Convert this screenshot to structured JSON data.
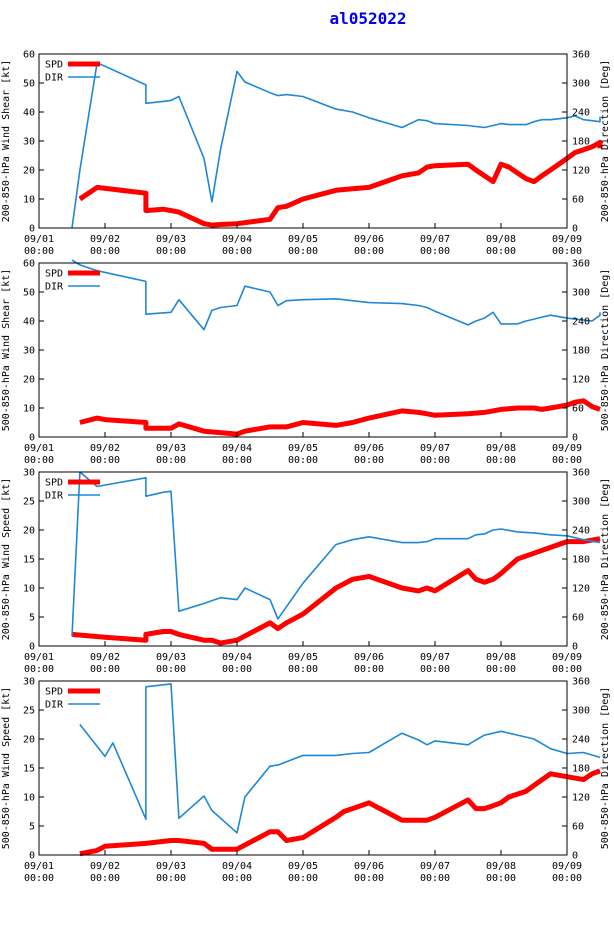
{
  "title": "al052022",
  "colors": {
    "spd": "#ff0000",
    "dir": "#1e88d6",
    "axis": "#000000",
    "title": "#0000ee"
  },
  "chart_data": [
    {
      "type": "line",
      "ylabel_left": "200-850-hPa Wind Shear [kt]",
      "ylabel_right": "200-850-hPa Direction [Deg]",
      "ylim_left": [
        0,
        60
      ],
      "yticks_left": [
        "0",
        "10",
        "20",
        "30",
        "40",
        "50",
        "60"
      ],
      "ylim_right": [
        0,
        360
      ],
      "yticks_right": [
        "0",
        "60",
        "120",
        "180",
        "240",
        "300",
        "360"
      ],
      "legend": [
        "SPD",
        "DIR"
      ],
      "x_ticks": [
        "09/01",
        "09/02",
        "09/03",
        "09/04",
        "09/05",
        "09/06",
        "09/07",
        "09/08",
        "09/09"
      ],
      "x_ticks2": [
        "00:00",
        "00:00",
        "00:00",
        "00:00",
        "00:00",
        "00:00",
        "00:00",
        "00:00",
        "00:00"
      ],
      "series": [
        {
          "name": "SPD",
          "axis": "left",
          "x": [
            0.62,
            0.88,
            1.62,
            1.62,
            1.88,
            2.0,
            2.12,
            2.5,
            2.62,
            2.75,
            3.0,
            3.5,
            3.62,
            3.75,
            4.0,
            4.5,
            4.75,
            5.0,
            5.5,
            5.75,
            5.88,
            6.0,
            6.5,
            6.62,
            6.75,
            6.88,
            7.0,
            7.12,
            7.25,
            7.38,
            7.5,
            7.62,
            7.75,
            8.0,
            8.12,
            8.25,
            8.38,
            8.5,
            8.5
          ],
          "values": [
            10,
            14,
            12,
            6,
            6.5,
            6,
            5.5,
            1.5,
            1,
            1.2,
            1.5,
            3,
            7,
            7.5,
            10,
            13,
            13.5,
            14,
            18,
            19,
            21,
            21.5,
            22,
            20,
            18,
            16,
            22,
            21,
            19,
            17,
            16,
            18,
            20,
            24,
            26,
            27,
            28,
            29.5,
            27.5
          ]
        },
        {
          "name": "DIR",
          "axis": "right",
          "x": [
            0.5,
            0.62,
            0.88,
            1.62,
            1.62,
            1.88,
            2.0,
            2.12,
            2.5,
            2.62,
            2.75,
            3.0,
            3.12,
            3.5,
            3.62,
            3.75,
            4.0,
            4.5,
            4.75,
            5.0,
            5.5,
            5.75,
            5.88,
            6.0,
            6.5,
            6.62,
            6.75,
            6.88,
            7.0,
            7.12,
            7.25,
            7.38,
            7.5,
            7.62,
            7.75,
            8.0,
            8.12,
            8.25,
            8.38,
            8.5,
            8.5
          ],
          "values": [
            0,
            120,
            342,
            296,
            258,
            262,
            264,
            272,
            144,
            54,
            162,
            324,
            302,
            280,
            274,
            276,
            272,
            246,
            240,
            228,
            208,
            224,
            222,
            216,
            212,
            210,
            208,
            212,
            216,
            214,
            214,
            214,
            220,
            224,
            224,
            228,
            232,
            224,
            222,
            220,
            230
          ]
        }
      ]
    },
    {
      "type": "line",
      "ylabel_left": "500-850-hPa Wind Shear [kt]",
      "ylabel_right": "500-850-hPa Direction [Deg]",
      "ylim_left": [
        0,
        60
      ],
      "yticks_left": [
        "0",
        "10",
        "20",
        "30",
        "40",
        "50",
        "60"
      ],
      "ylim_right": [
        0,
        360
      ],
      "yticks_right": [
        "0",
        "60",
        "120",
        "180",
        "240",
        "300",
        "360"
      ],
      "legend": [
        "SPD",
        "DIR"
      ],
      "x_ticks": [
        "09/01",
        "09/02",
        "09/03",
        "09/04",
        "09/05",
        "09/06",
        "09/07",
        "09/08",
        "09/09"
      ],
      "x_ticks2": [
        "00:00",
        "00:00",
        "00:00",
        "00:00",
        "00:00",
        "00:00",
        "00:00",
        "00:00",
        "00:00"
      ],
      "series": [
        {
          "name": "SPD",
          "axis": "left",
          "x": [
            0.62,
            0.88,
            1.0,
            1.62,
            1.62,
            2.0,
            2.12,
            2.5,
            2.75,
            3.0,
            3.12,
            3.5,
            3.62,
            3.75,
            4.0,
            4.5,
            4.75,
            5.0,
            5.5,
            5.75,
            5.88,
            6.0,
            6.5,
            6.75,
            7.0,
            7.25,
            7.5,
            7.62,
            7.75,
            8.0,
            8.12,
            8.25,
            8.38,
            8.5
          ],
          "values": [
            5,
            6.5,
            6,
            5,
            3,
            3,
            4.5,
            2,
            1.5,
            1,
            2,
            3.5,
            3.5,
            3.5,
            5,
            4,
            5,
            6.5,
            9,
            8.5,
            8,
            7.5,
            8,
            8.5,
            9.5,
            10,
            10,
            9.5,
            10,
            11,
            12,
            12.5,
            10.5,
            9.5
          ]
        },
        {
          "name": "DIR",
          "axis": "right",
          "x": [
            0.5,
            0.62,
            0.88,
            1.62,
            1.62,
            2.0,
            2.12,
            2.5,
            2.62,
            2.75,
            3.0,
            3.12,
            3.5,
            3.62,
            3.75,
            4.0,
            4.5,
            4.75,
            5.0,
            5.5,
            5.75,
            5.88,
            6.0,
            6.5,
            6.62,
            6.75,
            6.88,
            7.0,
            7.12,
            7.25,
            7.38,
            7.5,
            7.62,
            7.75,
            8.0,
            8.12,
            8.25,
            8.38,
            8.5,
            8.5
          ],
          "values": [
            366,
            356,
            344,
            322,
            254,
            258,
            284,
            222,
            262,
            268,
            272,
            312,
            300,
            272,
            282,
            284,
            286,
            282,
            278,
            276,
            272,
            268,
            260,
            232,
            240,
            246,
            258,
            234,
            234,
            234,
            240,
            244,
            248,
            252,
            246,
            244,
            242,
            240,
            252,
            258
          ]
        }
      ]
    },
    {
      "type": "line",
      "ylabel_left": "200-850-hPa Wind Speed [kt]",
      "ylabel_right": "200-850-hPa Direction [Deg]",
      "ylim_left": [
        0,
        30
      ],
      "yticks_left": [
        "0",
        "5",
        "10",
        "15",
        "20",
        "25",
        "30"
      ],
      "ylim_right": [
        0,
        360
      ],
      "yticks_right": [
        "0",
        "60",
        "120",
        "180",
        "240",
        "300",
        "360"
      ],
      "legend": [
        "SPD",
        "DIR"
      ],
      "x_ticks": [
        "09/01",
        "09/02",
        "09/03",
        "09/04",
        "09/05",
        "09/06",
        "09/07",
        "09/08",
        "09/09"
      ],
      "x_ticks2": [
        "00:00",
        "00:00",
        "00:00",
        "00:00",
        "00:00",
        "00:00",
        "00:00",
        "00:00",
        "00:00"
      ],
      "series": [
        {
          "name": "SPD",
          "axis": "left",
          "x": [
            0.5,
            1.0,
            1.62,
            1.62,
            1.88,
            2.0,
            2.12,
            2.5,
            2.62,
            2.75,
            3.0,
            3.5,
            3.62,
            3.75,
            4.0,
            4.5,
            4.75,
            5.0,
            5.5,
            5.75,
            5.88,
            6.0,
            6.5,
            6.62,
            6.75,
            6.88,
            7.0,
            7.25,
            7.5,
            7.75,
            8.0,
            8.25,
            8.5
          ],
          "values": [
            2,
            1.5,
            1,
            2,
            2.5,
            2.5,
            2,
            1,
            1,
            0.5,
            1,
            4,
            3,
            4,
            5.5,
            10,
            11.5,
            12,
            10,
            9.5,
            10,
            9.5,
            13,
            11.5,
            11,
            11.5,
            12.5,
            15,
            16,
            17,
            18,
            18,
            18.5
          ]
        },
        {
          "name": "DIR",
          "axis": "right",
          "x": [
            0.5,
            0.62,
            0.88,
            1.62,
            1.62,
            1.88,
            2.0,
            2.12,
            2.5,
            2.62,
            2.75,
            3.0,
            3.12,
            3.5,
            3.62,
            4.0,
            4.5,
            4.75,
            5.0,
            5.5,
            5.75,
            5.88,
            6.0,
            6.5,
            6.62,
            6.75,
            6.88,
            7.0,
            7.25,
            7.5,
            7.75,
            8.0,
            8.25,
            8.5
          ],
          "values": [
            20,
            360,
            330,
            348,
            310,
            318,
            320,
            72,
            88,
            94,
            100,
            96,
            120,
            96,
            56,
            130,
            210,
            220,
            226,
            214,
            214,
            216,
            222,
            222,
            230,
            232,
            240,
            242,
            236,
            234,
            230,
            228,
            220,
            214
          ]
        }
      ]
    },
    {
      "type": "line",
      "ylabel_left": "500-850-hPa Wind Speed [kt]",
      "ylabel_right": "500-850-hPa Direction [Deg]",
      "ylim_left": [
        0,
        30
      ],
      "yticks_left": [
        "0",
        "5",
        "10",
        "15",
        "20",
        "25",
        "30"
      ],
      "ylim_right": [
        0,
        360
      ],
      "yticks_right": [
        "0",
        "60",
        "120",
        "180",
        "240",
        "300",
        "360"
      ],
      "legend": [
        "SPD",
        "DIR"
      ],
      "x_ticks": [
        "09/01",
        "09/02",
        "09/03",
        "09/04",
        "09/05",
        "09/06",
        "09/07",
        "09/08",
        "09/09"
      ],
      "x_ticks2": [
        "00:00",
        "00:00",
        "00:00",
        "00:00",
        "00:00",
        "00:00",
        "00:00",
        "00:00",
        "00:00"
      ],
      "series": [
        {
          "name": "SPD",
          "axis": "left",
          "x": [
            0.62,
            0.88,
            1.0,
            1.62,
            1.62,
            2.0,
            2.12,
            2.5,
            2.62,
            2.75,
            3.0,
            3.5,
            3.62,
            3.75,
            4.0,
            4.5,
            4.62,
            4.75,
            5.0,
            5.5,
            5.75,
            5.88,
            6.0,
            6.5,
            6.62,
            6.75,
            6.88,
            7.0,
            7.12,
            7.25,
            7.38,
            7.5,
            7.75,
            8.0,
            8.25,
            8.38,
            8.5
          ],
          "values": [
            0.2,
            0.8,
            1.5,
            2,
            2,
            2.5,
            2.5,
            2,
            1,
            1,
            1,
            4,
            4,
            2.5,
            3,
            6.5,
            7.5,
            8,
            9,
            6,
            6,
            6,
            6.5,
            9.5,
            8,
            8,
            8.5,
            9,
            10,
            10.5,
            11,
            12,
            14,
            13.5,
            13,
            14,
            14.5
          ]
        },
        {
          "name": "DIR",
          "axis": "right",
          "x": [
            0.62,
            1.0,
            1.12,
            1.62,
            1.62,
            2.0,
            2.12,
            2.5,
            2.62,
            3.0,
            3.12,
            3.5,
            3.62,
            4.0,
            4.5,
            4.75,
            5.0,
            5.5,
            5.75,
            5.88,
            6.0,
            6.5,
            6.62,
            6.75,
            6.88,
            7.0,
            7.25,
            7.5,
            7.75,
            8.0,
            8.25,
            8.5
          ],
          "values": [
            270,
            204,
            232,
            74,
            348,
            354,
            76,
            122,
            92,
            46,
            120,
            184,
            186,
            206,
            206,
            210,
            212,
            252,
            238,
            228,
            236,
            228,
            238,
            248,
            252,
            256,
            248,
            240,
            220,
            210,
            212,
            202
          ]
        }
      ]
    }
  ]
}
